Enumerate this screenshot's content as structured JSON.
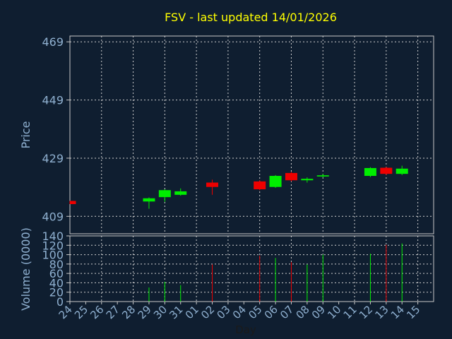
{
  "chart_data": {
    "type": "candlestick",
    "title": "FSV - last updated 14/01/2026",
    "xlabel": "Day",
    "price_panel": {
      "ylabel": "Price",
      "ylim": [
        403,
        471
      ],
      "yticks": [
        409,
        429,
        449,
        469
      ],
      "grid": true
    },
    "volume_panel": {
      "ylabel": "Volume (0000)",
      "ylim": [
        0,
        140
      ],
      "yticks": [
        0,
        20,
        40,
        60,
        80,
        100,
        120,
        140
      ],
      "grid": true
    },
    "categories": [
      "24",
      "25",
      "26",
      "27",
      "28",
      "29",
      "30",
      "31",
      "01",
      "02",
      "03",
      "04",
      "05",
      "06",
      "07",
      "08",
      "09",
      "10",
      "11",
      "12",
      "13",
      "14",
      "15"
    ],
    "candles": [
      {
        "day": "24",
        "open": 414.3,
        "close": 413.2,
        "high": 414.3,
        "low": 413.2,
        "volume": 0
      },
      {
        "day": "29",
        "open": 414.1,
        "close": 415.2,
        "high": 415.5,
        "low": 411.6,
        "volume": 30
      },
      {
        "day": "30",
        "open": 415.6,
        "close": 418.0,
        "high": 418.3,
        "low": 414.0,
        "volume": 42
      },
      {
        "day": "31",
        "open": 416.4,
        "close": 417.6,
        "high": 418.6,
        "low": 416.1,
        "volume": 35
      },
      {
        "day": "02",
        "open": 420.6,
        "close": 419.1,
        "high": 421.6,
        "low": 416.4,
        "volume": 79
      },
      {
        "day": "05",
        "open": 421.0,
        "close": 418.3,
        "high": 421.4,
        "low": 418.0,
        "volume": 98
      },
      {
        "day": "06",
        "open": 419.1,
        "close": 422.9,
        "high": 423.2,
        "low": 418.8,
        "volume": 93
      },
      {
        "day": "07",
        "open": 423.9,
        "close": 421.4,
        "high": 424.3,
        "low": 421.0,
        "volume": 84
      },
      {
        "day": "08",
        "open": 421.4,
        "close": 421.9,
        "high": 422.4,
        "low": 420.6,
        "volume": 79
      },
      {
        "day": "09",
        "open": 422.7,
        "close": 423.1,
        "high": 423.6,
        "low": 422.4,
        "volume": 100
      },
      {
        "day": "12",
        "open": 422.9,
        "close": 425.6,
        "high": 425.9,
        "low": 422.5,
        "volume": 102
      },
      {
        "day": "13",
        "open": 425.7,
        "close": 423.6,
        "high": 426.0,
        "low": 423.2,
        "volume": 121
      },
      {
        "day": "14",
        "open": 423.6,
        "close": 425.4,
        "high": 426.4,
        "low": 423.2,
        "volume": 124
      }
    ],
    "colors": {
      "up": "#00ee00",
      "down": "#ee0000",
      "title": "#ffff00",
      "axis_text": "#8fb0d0",
      "background": "#0f1e30",
      "panel_border": "#c8c8c8",
      "grid": "#d0d0d0"
    }
  }
}
